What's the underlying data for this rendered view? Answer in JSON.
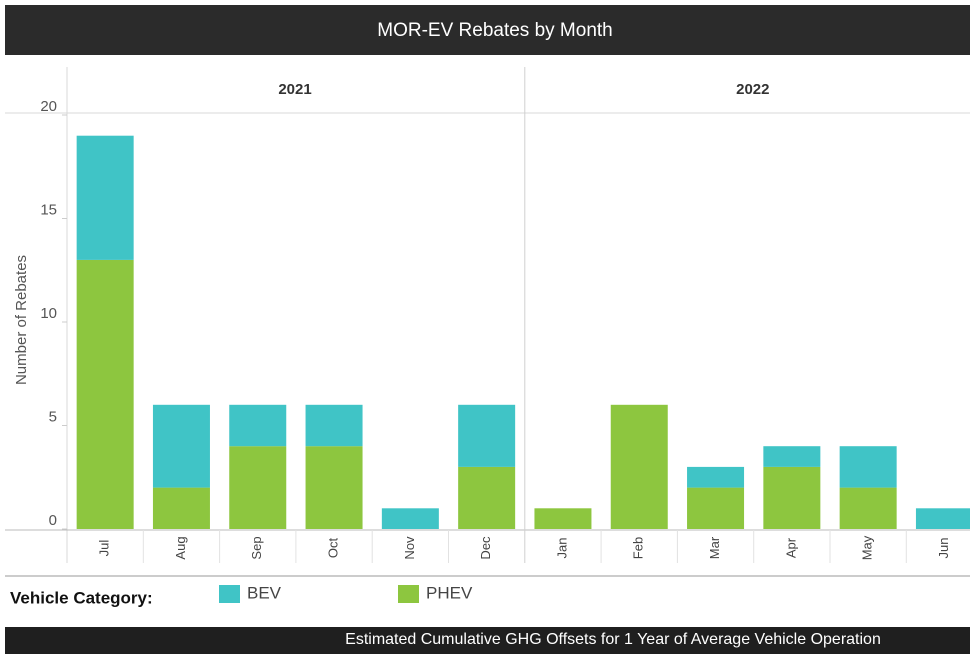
{
  "chart_data": {
    "type": "bar",
    "stacked": true,
    "title": "MOR-EV Rebates by Month",
    "ylabel": "Number of Rebates",
    "ylim": [
      0,
      20
    ],
    "yticks": [
      0,
      5,
      10,
      15,
      20
    ],
    "grid": false,
    "panels": [
      {
        "title": "2021",
        "categories": [
          "Jul",
          "Aug",
          "Sep",
          "Oct",
          "Nov",
          "Dec"
        ]
      },
      {
        "title": "2022",
        "categories": [
          "Jan",
          "Feb",
          "Mar",
          "Apr",
          "May",
          "Jun"
        ]
      }
    ],
    "series": [
      {
        "name": "BEV",
        "color": "#40c4c6",
        "values": [
          6,
          4,
          2,
          2,
          1,
          3,
          0,
          0,
          1,
          1,
          2,
          1
        ]
      },
      {
        "name": "PHEV",
        "color": "#8dc63f",
        "values": [
          13,
          2,
          4,
          4,
          0,
          3,
          1,
          6,
          2,
          3,
          2,
          0
        ]
      }
    ],
    "legend_title": "Vehicle Category:"
  },
  "footer": "Estimated Cumulative GHG Offsets for 1 Year of Average Vehicle Operation"
}
